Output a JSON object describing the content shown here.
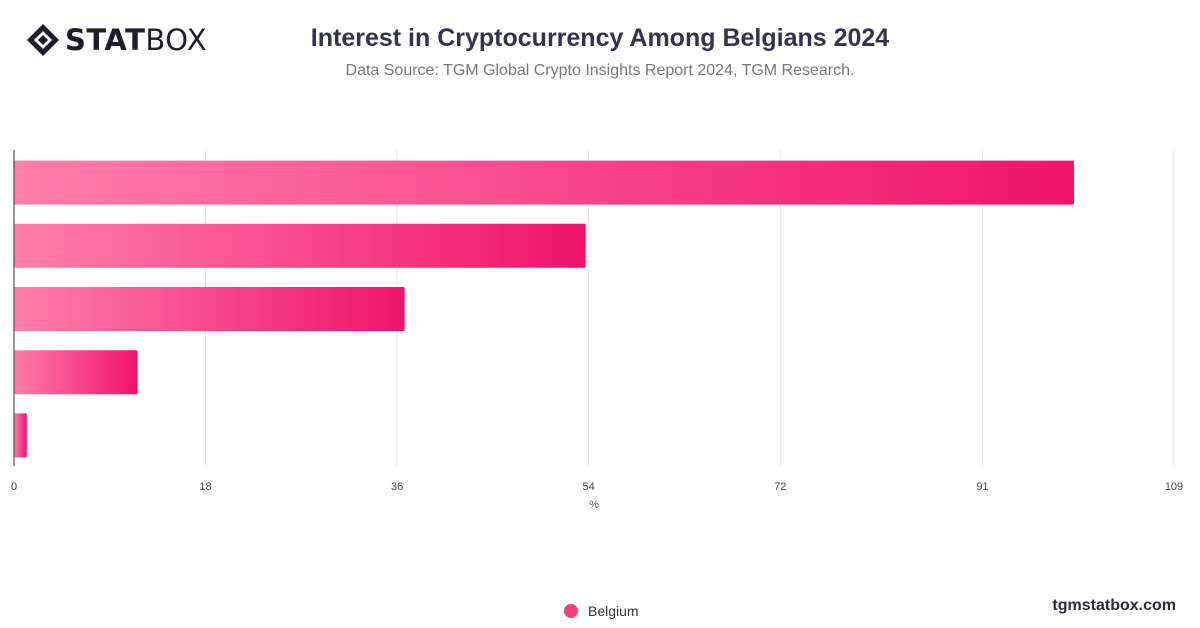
{
  "brand": {
    "logo_bold": "STAT",
    "logo_light": "BOX",
    "footer": "tgmstatbox.com"
  },
  "header": {
    "title": "Interest in Cryptocurrency Among Belgians 2024",
    "subtitle": "Data Source: TGM Global Crypto Insights Report 2024, TGM Research."
  },
  "chart_data": {
    "type": "bar",
    "orientation": "horizontal",
    "categories": [
      "",
      "",
      "",
      "",
      ""
    ],
    "series": [
      {
        "name": "Belgium",
        "values": [
          99.6,
          53.7,
          36.7,
          11.6,
          1.2
        ]
      }
    ],
    "xlabel": "%",
    "ylabel": "",
    "xlim": [
      0,
      109
    ],
    "x_ticks": [
      "0",
      "18",
      "36",
      "54",
      "72",
      "91",
      "109"
    ],
    "x_tick_values": [
      0,
      18,
      36,
      54,
      72,
      91,
      109
    ],
    "grid": true,
    "legend": "bottom-center",
    "colors": {
      "bar_start": "#ff7eaa",
      "bar_end": "#f0136a",
      "grid": "#e3e3e3",
      "axis": "#333333"
    }
  }
}
